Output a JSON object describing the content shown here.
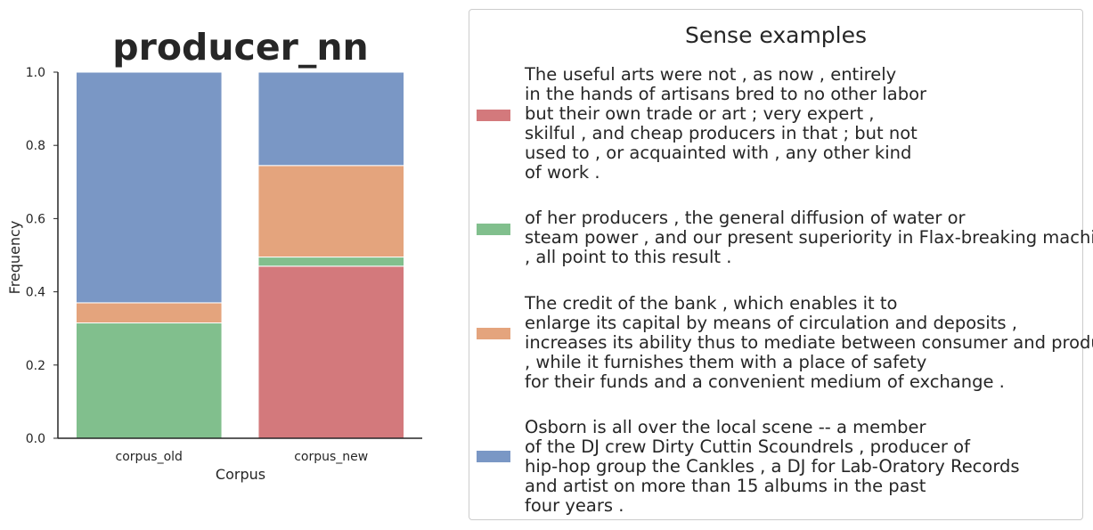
{
  "chart_data": {
    "type": "bar",
    "stacked": true,
    "title": "producer_nn",
    "xlabel": "Corpus",
    "ylabel": "Frequency",
    "ylim": [
      0,
      1.0
    ],
    "yticks": [
      "0.0",
      "0.2",
      "0.4",
      "0.6",
      "0.8",
      "1.0"
    ],
    "categories": [
      "corpus_old",
      "corpus_new"
    ],
    "series": [
      {
        "color": "#d3797c",
        "values": [
          0.0,
          0.47
        ]
      },
      {
        "color": "#81bf8d",
        "values": [
          0.315,
          0.025
        ]
      },
      {
        "color": "#e4a47d",
        "values": [
          0.055,
          0.25
        ]
      },
      {
        "color": "#7a97c5",
        "values": [
          0.63,
          0.255
        ]
      }
    ],
    "grid": false
  },
  "legend": {
    "title": "Sense examples",
    "entries": [
      {
        "color": "#d3797c",
        "text": "The useful arts were not , as now , entirely\nin the hands of artisans bred to no other labor\nbut their own trade or art ; very expert ,\nskilful , and cheap producers in that ; but not\nused to , or acquainted with , any other kind\nof work ."
      },
      {
        "color": "#81bf8d",
        "text": "of her producers , the general diffusion of water or\nsteam power , and our present superiority in Flax-breaking machinery\n, all point to this result ."
      },
      {
        "color": "#e4a47d",
        "text": "The credit of the bank , which enables it to\nenlarge its capital by means of circulation and deposits ,\nincreases its ability thus to mediate between consumer and producer\n, while it furnishes them with a place of safety\nfor their funds and a convenient medium of exchange ."
      },
      {
        "color": "#7a97c5",
        "text": "Osborn is all over the local scene -- a member\nof the DJ crew Dirty Cuttin Scoundrels , producer of\nhip-hop group the Cankles , a DJ for Lab-Oratory Records\nand artist on more than 15 albums in the past\nfour years ."
      }
    ]
  }
}
